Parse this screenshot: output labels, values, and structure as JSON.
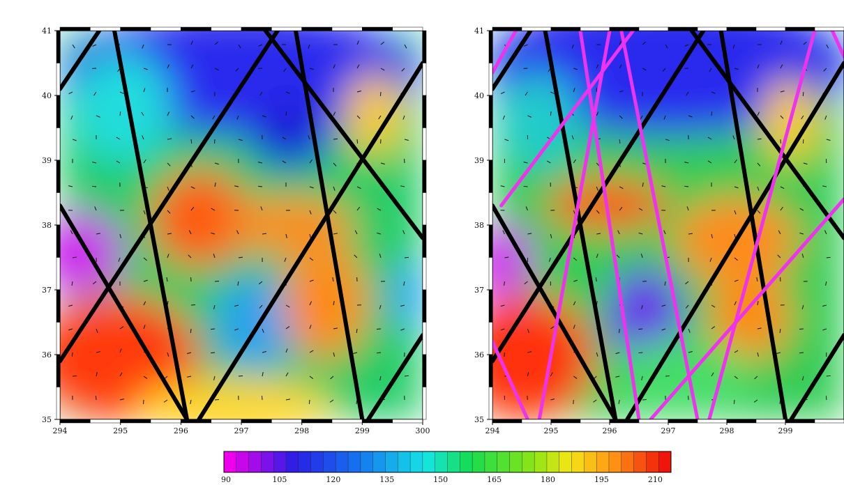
{
  "maps": [
    {
      "id": "left",
      "x_ticks": [
        "294",
        "295",
        "296",
        "297",
        "298",
        "299",
        "300"
      ],
      "y_ticks": [
        "35",
        "36",
        "37",
        "38",
        "39",
        "40",
        "41"
      ],
      "lon_range": [
        294,
        300
      ],
      "lat_range": [
        35,
        41
      ],
      "tracks": [
        {
          "color": "#000000",
          "points": [
            [
              294.0,
              40.1
            ],
            [
              294.65,
              41.0
            ]
          ]
        },
        {
          "color": "#000000",
          "points": [
            [
              294.9,
              41.0
            ],
            [
              296.1,
              35.0
            ]
          ]
        },
        {
          "color": "#000000",
          "points": [
            [
              294.0,
              38.3
            ],
            [
              296.1,
              35.0
            ]
          ]
        },
        {
          "color": "#000000",
          "points": [
            [
              294.0,
              35.9
            ],
            [
              297.6,
              41.0
            ]
          ]
        },
        {
          "color": "#000000",
          "points": [
            [
              297.9,
              41.0
            ],
            [
              299.0,
              35.0
            ]
          ]
        },
        {
          "color": "#000000",
          "points": [
            [
              296.3,
              35.0
            ],
            [
              300.0,
              40.5
            ]
          ]
        },
        {
          "color": "#000000",
          "points": [
            [
              297.4,
              41.0
            ],
            [
              300.0,
              37.8
            ]
          ]
        },
        {
          "color": "#000000",
          "points": [
            [
              299.1,
              35.0
            ],
            [
              300.0,
              36.3
            ]
          ]
        }
      ]
    },
    {
      "id": "right",
      "x_ticks": [
        "294",
        "295",
        "296",
        "297",
        "298",
        "299"
      ],
      "y_ticks": [
        "35",
        "36",
        "37",
        "38",
        "39",
        "40",
        "41"
      ],
      "lon_range": [
        294,
        300
      ],
      "lat_range": [
        35,
        41
      ],
      "tracks": [
        {
          "color": "#000000",
          "points": [
            [
              294.0,
              40.1
            ],
            [
              294.65,
              41.0
            ]
          ]
        },
        {
          "color": "#000000",
          "points": [
            [
              294.9,
              41.0
            ],
            [
              296.1,
              35.0
            ]
          ]
        },
        {
          "color": "#000000",
          "points": [
            [
              294.0,
              38.3
            ],
            [
              296.1,
              35.0
            ]
          ]
        },
        {
          "color": "#000000",
          "points": [
            [
              294.0,
              35.9
            ],
            [
              297.6,
              41.0
            ]
          ]
        },
        {
          "color": "#000000",
          "points": [
            [
              297.9,
              41.0
            ],
            [
              299.0,
              35.0
            ]
          ]
        },
        {
          "color": "#000000",
          "points": [
            [
              296.3,
              35.0
            ],
            [
              300.0,
              40.5
            ]
          ]
        },
        {
          "color": "#000000",
          "points": [
            [
              297.4,
              41.0
            ],
            [
              300.0,
              37.8
            ]
          ]
        },
        {
          "color": "#000000",
          "points": [
            [
              299.1,
              35.0
            ],
            [
              300.0,
              36.3
            ]
          ]
        },
        {
          "color": "#ee33ee",
          "points": [
            [
              294.0,
              40.35
            ],
            [
              294.4,
              41.0
            ]
          ]
        },
        {
          "color": "#ee33ee",
          "points": [
            [
              294.8,
              35.0
            ],
            [
              296.0,
              41.0
            ]
          ]
        },
        {
          "color": "#ee33ee",
          "points": [
            [
              294.0,
              36.2
            ],
            [
              294.6,
              35.0
            ]
          ]
        },
        {
          "color": "#ee33ee",
          "points": [
            [
              294.15,
              38.3
            ],
            [
              296.4,
              41.0
            ]
          ]
        },
        {
          "color": "#ee33ee",
          "points": [
            [
              296.2,
              41.0
            ],
            [
              297.5,
              35.0
            ]
          ]
        },
        {
          "color": "#ee33ee",
          "points": [
            [
              297.7,
              35.0
            ],
            [
              299.5,
              41.0
            ]
          ]
        },
        {
          "color": "#ee33ee",
          "points": [
            [
              299.8,
              41.0
            ],
            [
              300.0,
              40.6
            ]
          ]
        },
        {
          "color": "#ee33ee",
          "points": [
            [
              295.5,
              41.0
            ],
            [
              296.5,
              35.0
            ]
          ]
        },
        {
          "color": "#ee33ee",
          "points": [
            [
              296.7,
              35.0
            ],
            [
              300.0,
              38.4
            ]
          ]
        }
      ]
    }
  ],
  "colorbar": {
    "min": 90,
    "max": 215,
    "step": 3.5,
    "tick_labels": [
      "90",
      "105",
      "120",
      "135",
      "150",
      "165",
      "180",
      "195",
      "210"
    ],
    "tick_values": [
      90,
      105,
      120,
      135,
      150,
      165,
      180,
      195,
      210
    ]
  }
}
